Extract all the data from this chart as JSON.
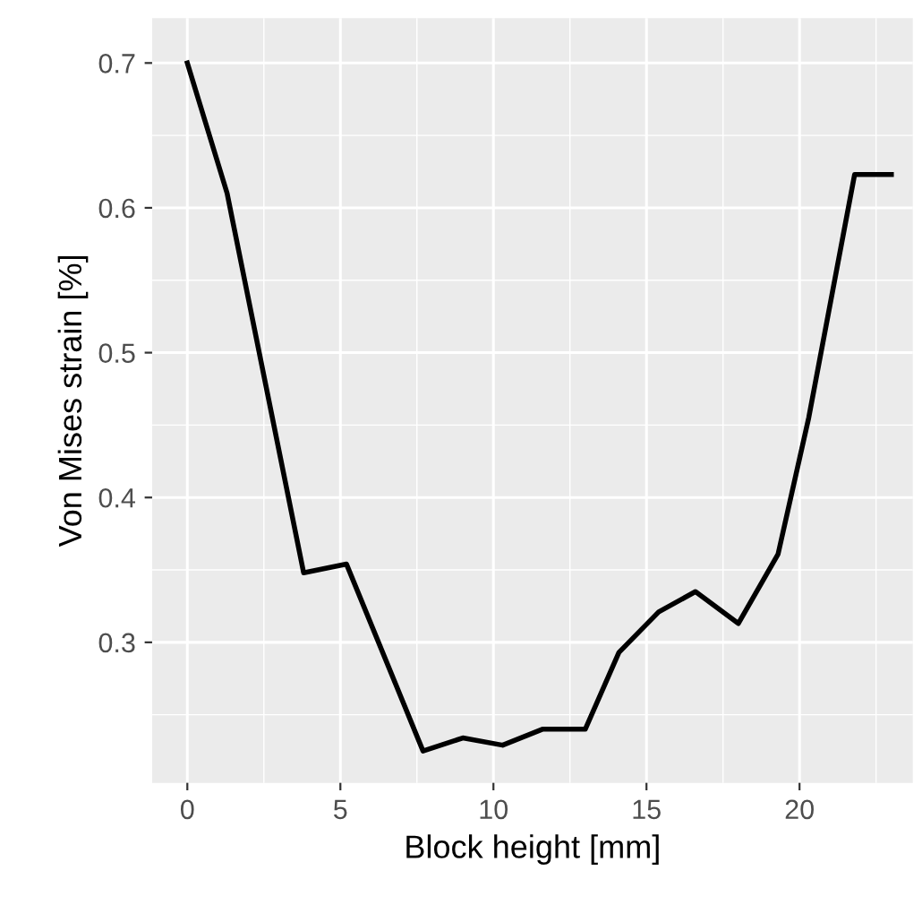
{
  "chart_data": {
    "type": "line",
    "xlabel": "Block height [mm]",
    "ylabel": "Von Mises strain [%]",
    "x": [
      0,
      1.3,
      3.8,
      5.2,
      7.7,
      9.0,
      10.3,
      11.6,
      13.0,
      14.1,
      15.4,
      16.6,
      18.0,
      19.3,
      20.3,
      21.8,
      23.0
    ],
    "series": [
      {
        "color": "#000000",
        "values": [
          0.7,
          0.61,
          0.348,
          0.354,
          0.225,
          0.234,
          0.229,
          0.24,
          0.24,
          0.293,
          0.321,
          0.335,
          0.313,
          0.361,
          0.455,
          0.623,
          0.623
        ]
      }
    ],
    "xlim": [
      -1.15,
      23.7
    ],
    "ylim": [
      0.203,
      0.731
    ],
    "xticks": [
      0,
      5,
      10,
      15,
      20
    ],
    "yticks": [
      0.3,
      0.4,
      0.5,
      0.6,
      0.7
    ],
    "grid": true,
    "legend": false
  }
}
